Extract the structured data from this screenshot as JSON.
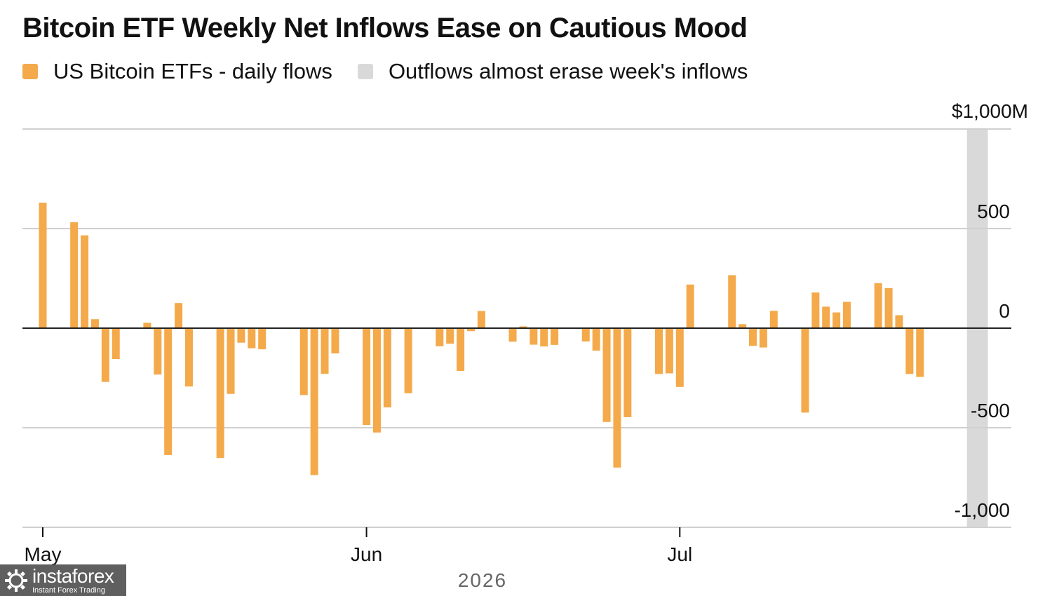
{
  "chart_data": {
    "type": "bar",
    "title": "Bitcoin ETF Weekly Net Inflows Ease on Cautious Mood",
    "legend": [
      {
        "label": "US Bitcoin ETFs - daily flows",
        "color": "#f4a94a"
      },
      {
        "label": "Outflows almost erase week's inflows",
        "color": "#d9d9d9"
      }
    ],
    "y_ticks": [
      {
        "value": 1000,
        "label": "$1,000M"
      },
      {
        "value": 500,
        "label": "500"
      },
      {
        "value": 0,
        "label": "0"
      },
      {
        "value": -500,
        "label": "-500"
      },
      {
        "value": -1000,
        "label": "-1,000"
      }
    ],
    "ylim": [
      -1000,
      1000
    ],
    "x_ticks": [
      {
        "date": "2026-05-01",
        "label": "May"
      },
      {
        "date": "2026-06-01",
        "label": "Jun"
      },
      {
        "date": "2026-07-01",
        "label": "Jul"
      }
    ],
    "year_label": "2026",
    "highlight": {
      "start": "2026-07-29",
      "end": "2026-07-30",
      "color": "#d9d9d9"
    },
    "series": [
      {
        "color": "#f4a94a",
        "points": [
          {
            "date": "2026-05-01",
            "value": 630
          },
          {
            "date": "2026-05-04",
            "value": 532
          },
          {
            "date": "2026-05-05",
            "value": 466
          },
          {
            "date": "2026-05-06",
            "value": 45
          },
          {
            "date": "2026-05-07",
            "value": -270
          },
          {
            "date": "2026-05-08",
            "value": -155
          },
          {
            "date": "2026-05-11",
            "value": 27
          },
          {
            "date": "2026-05-12",
            "value": -233
          },
          {
            "date": "2026-05-13",
            "value": -637
          },
          {
            "date": "2026-05-14",
            "value": 126
          },
          {
            "date": "2026-05-15",
            "value": -293
          },
          {
            "date": "2026-05-18",
            "value": -652
          },
          {
            "date": "2026-05-19",
            "value": -330
          },
          {
            "date": "2026-05-20",
            "value": -73
          },
          {
            "date": "2026-05-21",
            "value": -101
          },
          {
            "date": "2026-05-22",
            "value": -106
          },
          {
            "date": "2026-05-26",
            "value": -336
          },
          {
            "date": "2026-05-27",
            "value": -738
          },
          {
            "date": "2026-05-28",
            "value": -229
          },
          {
            "date": "2026-05-29",
            "value": -127
          },
          {
            "date": "2026-06-01",
            "value": -486
          },
          {
            "date": "2026-06-02",
            "value": -524
          },
          {
            "date": "2026-06-03",
            "value": -398
          },
          {
            "date": "2026-06-04",
            "value": -4
          },
          {
            "date": "2026-06-05",
            "value": -327
          },
          {
            "date": "2026-06-08",
            "value": -91
          },
          {
            "date": "2026-06-09",
            "value": -78
          },
          {
            "date": "2026-06-10",
            "value": -215
          },
          {
            "date": "2026-06-11",
            "value": -15
          },
          {
            "date": "2026-06-12",
            "value": 86
          },
          {
            "date": "2026-06-15",
            "value": -68
          },
          {
            "date": "2026-06-16",
            "value": 9
          },
          {
            "date": "2026-06-17",
            "value": -83
          },
          {
            "date": "2026-06-18",
            "value": -92
          },
          {
            "date": "2026-06-19",
            "value": -84
          },
          {
            "date": "2026-06-22",
            "value": -67
          },
          {
            "date": "2026-06-23",
            "value": -113
          },
          {
            "date": "2026-06-24",
            "value": -471
          },
          {
            "date": "2026-06-25",
            "value": -700
          },
          {
            "date": "2026-06-26",
            "value": -447
          },
          {
            "date": "2026-06-29",
            "value": -230
          },
          {
            "date": "2026-06-30",
            "value": -227
          },
          {
            "date": "2026-07-01",
            "value": -295
          },
          {
            "date": "2026-07-02",
            "value": 219
          },
          {
            "date": "2026-07-06",
            "value": 266
          },
          {
            "date": "2026-07-07",
            "value": 20
          },
          {
            "date": "2026-07-08",
            "value": -89
          },
          {
            "date": "2026-07-09",
            "value": -97
          },
          {
            "date": "2026-07-10",
            "value": 87
          },
          {
            "date": "2026-07-13",
            "value": -424
          },
          {
            "date": "2026-07-14",
            "value": 179
          },
          {
            "date": "2026-07-15",
            "value": 108
          },
          {
            "date": "2026-07-16",
            "value": 79
          },
          {
            "date": "2026-07-17",
            "value": 132
          },
          {
            "date": "2026-07-20",
            "value": 226
          },
          {
            "date": "2026-07-21",
            "value": 201
          },
          {
            "date": "2026-07-22",
            "value": 65
          },
          {
            "date": "2026-07-23",
            "value": -230
          },
          {
            "date": "2026-07-24",
            "value": -245
          }
        ]
      }
    ]
  },
  "watermark": {
    "name": "instaforex",
    "tagline": "Instant Forex Trading"
  }
}
